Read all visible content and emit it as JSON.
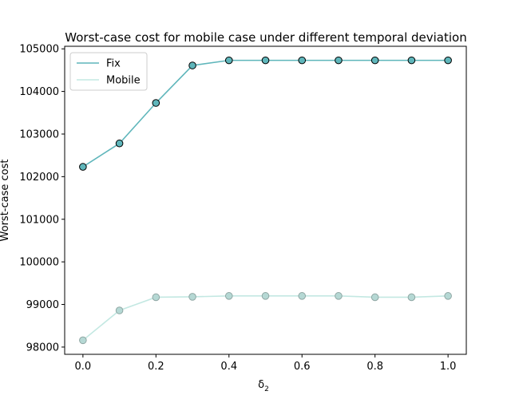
{
  "chart_data": {
    "type": "line",
    "title": "Worst-case cost for mobile case under different temporal deviation",
    "xlabel": "δ",
    "xlabel_sub": "2",
    "ylabel": "Worst-case cost",
    "x": [
      0.0,
      0.1,
      0.2,
      0.3,
      0.4,
      0.5,
      0.6,
      0.7,
      0.8,
      0.9,
      1.0
    ],
    "xlim": [
      -0.05,
      1.05
    ],
    "ylim": [
      97830,
      105060
    ],
    "xticks": [
      0.0,
      0.2,
      0.4,
      0.6,
      0.8,
      1.0
    ],
    "xtick_labels": [
      "0.0",
      "0.2",
      "0.4",
      "0.6",
      "0.8",
      "1.0"
    ],
    "yticks": [
      98000,
      99000,
      100000,
      101000,
      102000,
      103000,
      104000,
      105000
    ],
    "ytick_labels": [
      "98000",
      "99000",
      "100000",
      "101000",
      "102000",
      "103000",
      "104000",
      "105000"
    ],
    "grid": false,
    "legend_position": "top-left",
    "series": [
      {
        "name": "Fix",
        "color": "#5fb6bb",
        "marker_face": "#5fb6bb",
        "marker_edge": "#000000",
        "values": [
          102230,
          102780,
          103730,
          104610,
          104730,
          104730,
          104730,
          104730,
          104730,
          104730,
          104730
        ]
      },
      {
        "name": "Mobile",
        "color": "#c3e8e2",
        "marker_face": "#b5d8d4",
        "marker_edge": "#8fa6a3",
        "values": [
          98160,
          98860,
          99170,
          99180,
          99200,
          99200,
          99200,
          99200,
          99170,
          99170,
          99200
        ]
      }
    ]
  }
}
